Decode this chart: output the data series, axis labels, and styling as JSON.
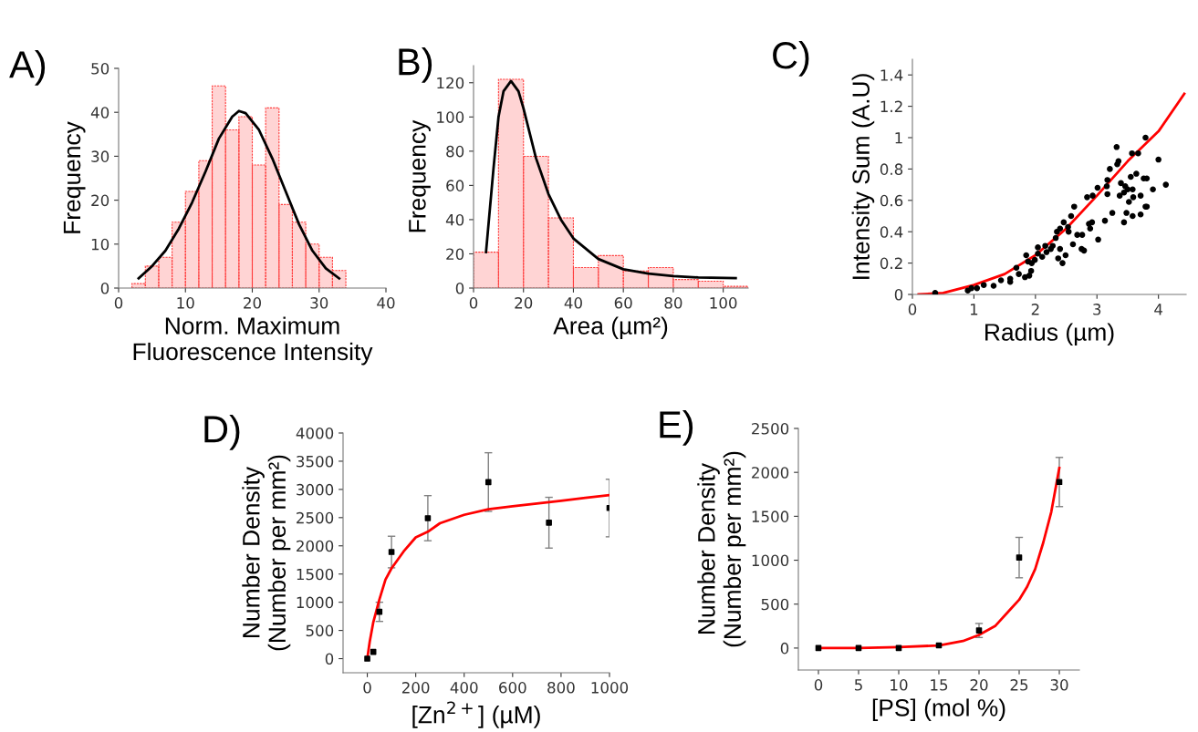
{
  "chart_data": [
    {
      "type": "histogram",
      "title": "A)",
      "xlabel": "Norm. Maximum\nFluorescence Intensity",
      "ylabel": "Frequency",
      "bins": [
        2,
        4,
        6,
        8,
        10,
        12,
        14,
        16,
        18,
        20,
        22,
        24,
        26,
        28,
        30,
        32,
        34
      ],
      "values": [
        1,
        5,
        7,
        15,
        22,
        29,
        46,
        36,
        39,
        28,
        41,
        19,
        15,
        10,
        7,
        4
      ],
      "color": "#ff3b3b",
      "xlim": [
        0,
        40
      ],
      "xticks": [
        0,
        10,
        20,
        30,
        40
      ],
      "ylim": [
        0,
        50
      ],
      "yticks": [
        0,
        10,
        20,
        30,
        40,
        50
      ],
      "series": [
        {
          "type": "line",
          "color": "#000000",
          "x": [
            3,
            5,
            7,
            9,
            11,
            13,
            15,
            17,
            18,
            19,
            21,
            23,
            25,
            27,
            29,
            31,
            33
          ],
          "values": [
            2.2,
            5,
            8.5,
            13.5,
            19.5,
            26.5,
            34,
            39,
            40.3,
            39.8,
            36,
            29.5,
            22,
            14.5,
            8.5,
            4.5,
            2.2
          ]
        }
      ]
    },
    {
      "type": "histogram",
      "title": "B)",
      "xlabel": "Area (µm²)",
      "ylabel": "Frequency",
      "bins": [
        0,
        10,
        20,
        30,
        40,
        50,
        60,
        70,
        80,
        90,
        100,
        110
      ],
      "values": [
        21,
        122,
        77,
        41,
        12,
        19,
        10,
        12,
        5,
        4,
        1
      ],
      "color": "#ff3b3b",
      "xlim": [
        0,
        110
      ],
      "xticks": [
        0,
        20,
        40,
        60,
        80,
        100
      ],
      "ylim": [
        0,
        130
      ],
      "yticks": [
        0,
        20,
        40,
        60,
        80,
        100,
        120
      ],
      "series": [
        {
          "type": "line",
          "color": "#000000",
          "x": [
            5,
            8,
            10,
            12,
            15,
            18,
            20,
            25,
            30,
            35,
            40,
            50,
            60,
            70,
            80,
            90,
            105
          ],
          "values": [
            21,
            70,
            100,
            115,
            121,
            115,
            105,
            76,
            55,
            40,
            29,
            17,
            11,
            8.5,
            7,
            6.2,
            5.8
          ]
        }
      ]
    },
    {
      "type": "scatter",
      "title": "C)",
      "xlabel": "Radius (µm)",
      "ylabel": "Intensity Sum (A.U)",
      "xlim": [
        0,
        4.45
      ],
      "xticks": [
        0,
        1,
        2,
        3,
        4
      ],
      "ylim": [
        0,
        1.5
      ],
      "yticks": [
        0,
        0.2,
        0.4,
        0.6,
        0.8,
        1,
        1.2,
        1.4
      ],
      "series": [
        {
          "type": "scatter",
          "marker": "circle",
          "color": "#000000",
          "x": [
            0.37,
            0.9,
            0.96,
            1.05,
            1.16,
            1.32,
            1.44,
            1.59,
            1.59,
            1.73,
            1.69,
            1.83,
            1.9,
            1.93,
            1.88,
            1.85,
            1.94,
            1.99,
            2.04,
            2.04,
            2.11,
            2.18,
            2.16,
            2.25,
            2.28,
            2.33,
            2.35,
            2.4,
            2.4,
            2.37,
            2.44,
            2.49,
            2.46,
            2.53,
            2.54,
            2.58,
            2.63,
            2.61,
            2.68,
            2.76,
            2.75,
            2.79,
            2.84,
            2.87,
            2.89,
            2.93,
            2.92,
            3.01,
            3.02,
            3.13,
            3.16,
            3.17,
            3.21,
            3.17,
            3.25,
            3.32,
            3.33,
            3.35,
            3.39,
            3.37,
            3.44,
            3.46,
            3.44,
            3.48,
            3.5,
            3.52,
            3.55,
            3.57,
            3.58,
            3.59,
            3.58,
            3.67,
            3.64,
            3.71,
            3.71,
            3.79,
            3.76,
            3.81,
            3.81,
            3.79,
            3.91,
            4.0,
            4.12
          ],
          "values": [
            0.01,
            0.025,
            0.04,
            0.04,
            0.06,
            0.055,
            0.09,
            0.1,
            0.08,
            0.13,
            0.17,
            0.11,
            0.12,
            0.15,
            0.21,
            0.25,
            0.2,
            0.22,
            0.26,
            0.3,
            0.24,
            0.27,
            0.31,
            0.29,
            0.31,
            0.36,
            0.4,
            0.42,
            0.29,
            0.23,
            0.2,
            0.25,
            0.46,
            0.43,
            0.4,
            0.5,
            0.56,
            0.32,
            0.38,
            0.38,
            0.29,
            0.28,
            0.62,
            0.45,
            0.42,
            0.63,
            0.46,
            0.68,
            0.35,
            0.47,
            0.69,
            0.73,
            0.8,
            0.64,
            0.52,
            0.94,
            0.83,
            0.85,
            0.71,
            0.63,
            0.65,
            0.69,
            0.46,
            0.52,
            0.67,
            0.59,
            0.75,
            0.9,
            0.67,
            0.62,
            0.5,
            0.9,
            0.77,
            0.63,
            0.51,
            1.0,
            0.74,
            0.74,
            0.56,
            0.56,
            0.67,
            0.86,
            0.7
          ]
        },
        {
          "type": "line",
          "color": "#ff0000",
          "x": [
            0.1,
            0.5,
            1,
            1.5,
            2,
            2.5,
            3,
            3.5,
            4,
            4.42
          ],
          "values": [
            0,
            0.01,
            0.06,
            0.13,
            0.25,
            0.42,
            0.63,
            0.85,
            1.04,
            1.28
          ]
        }
      ]
    },
    {
      "type": "scatter",
      "title": "D)",
      "xlabel": "[Zn$^{2+}$] (µM)",
      "ylabel": "Number Density\n(Number per mm²)",
      "xlim": [
        -100,
        1000
      ],
      "xticks": [
        0,
        200,
        400,
        600,
        800,
        1000
      ],
      "ylim": [
        -250,
        4000
      ],
      "yticks": [
        0,
        500,
        1000,
        1500,
        2000,
        2500,
        3000,
        3500,
        4000
      ],
      "series": [
        {
          "type": "scatter",
          "marker": "square",
          "color": "#000000",
          "x": [
            0,
            25,
            50,
            100,
            250,
            500,
            750,
            1000
          ],
          "values": [
            0,
            120,
            830,
            1890,
            2490,
            3130,
            2410,
            2670
          ],
          "errors": [
            null,
            null,
            170,
            280,
            400,
            520,
            450,
            510
          ]
        },
        {
          "type": "line",
          "color": "#ff0000",
          "x": [
            0,
            10,
            25,
            50,
            75,
            100,
            150,
            200,
            250,
            300,
            400,
            500,
            600,
            700,
            800,
            900,
            1000
          ],
          "values": [
            0,
            300,
            650,
            1050,
            1400,
            1600,
            1900,
            2150,
            2250,
            2400,
            2550,
            2650,
            2700,
            2750,
            2800,
            2850,
            2900
          ]
        }
      ]
    },
    {
      "type": "scatter",
      "title": "E)",
      "xlabel": "[PS] (mol %)",
      "ylabel": "Number Density\n(Number per mm²)",
      "xlim": [
        -2.5,
        32.5
      ],
      "xticks": [
        0,
        5,
        10,
        15,
        20,
        25,
        30
      ],
      "ylim": [
        -250,
        2500
      ],
      "yticks": [
        0,
        500,
        1000,
        1500,
        2000,
        2500
      ],
      "series": [
        {
          "type": "scatter",
          "marker": "square",
          "color": "#000000",
          "x": [
            0,
            5,
            10,
            15,
            20,
            25,
            30
          ],
          "values": [
            0,
            0,
            0,
            30,
            200,
            1030,
            1890
          ],
          "errors": [
            null,
            null,
            null,
            null,
            80,
            230,
            280
          ]
        },
        {
          "type": "line",
          "color": "#ff0000",
          "x": [
            0,
            5,
            10,
            15,
            18,
            20,
            22,
            24,
            25,
            26,
            27,
            28,
            29,
            30
          ],
          "values": [
            0,
            0,
            10,
            30,
            80,
            150,
            250,
            450,
            550,
            700,
            900,
            1200,
            1550,
            2050
          ]
        }
      ]
    }
  ]
}
